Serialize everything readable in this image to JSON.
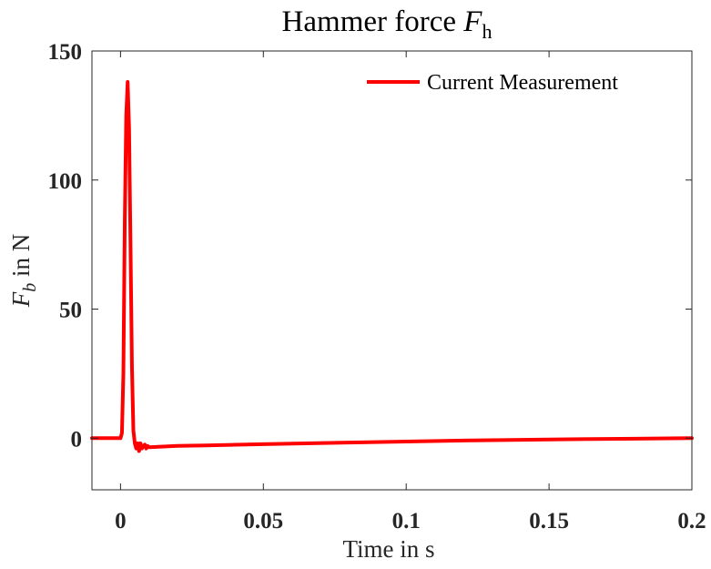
{
  "chart_data": {
    "type": "line",
    "title": {
      "text": "Hammer force ",
      "math_var": "F",
      "math_sub": "h"
    },
    "xlabel": "Time in s",
    "ylabel": {
      "math_var": "F",
      "math_sub": "b",
      "text": " in N"
    },
    "xlim": [
      -0.01,
      0.2
    ],
    "ylim": [
      -20,
      150
    ],
    "xticks": [
      0,
      0.05,
      0.1,
      0.15,
      0.2
    ],
    "xtick_labels": [
      "0",
      "0.05",
      "0.1",
      "0.15",
      "0.2"
    ],
    "yticks": [
      0,
      50,
      100,
      150
    ],
    "ytick_labels": [
      "0",
      "50",
      "100",
      "150"
    ],
    "grid": false,
    "legend_position": "top-right",
    "series": [
      {
        "name": "Current Measurement",
        "color": "#ff0000",
        "x": [
          -0.01,
          0.0,
          0.0005,
          0.001,
          0.0015,
          0.002,
          0.0025,
          0.003,
          0.0035,
          0.004,
          0.0045,
          0.005,
          0.0055,
          0.006,
          0.0065,
          0.007,
          0.0075,
          0.008,
          0.0085,
          0.009,
          0.0095,
          0.01,
          0.02,
          0.03,
          0.05,
          0.08,
          0.1,
          0.12,
          0.15,
          0.18,
          0.2
        ],
        "y": [
          0,
          0,
          2,
          25,
          85,
          125,
          138,
          120,
          75,
          28,
          3,
          -2,
          -4,
          -2,
          -5,
          -2,
          -4,
          -3,
          -2.5,
          -4,
          -3,
          -3.5,
          -3,
          -2.8,
          -2.3,
          -1.7,
          -1.3,
          -0.9,
          -0.5,
          -0.2,
          0
        ]
      }
    ]
  }
}
